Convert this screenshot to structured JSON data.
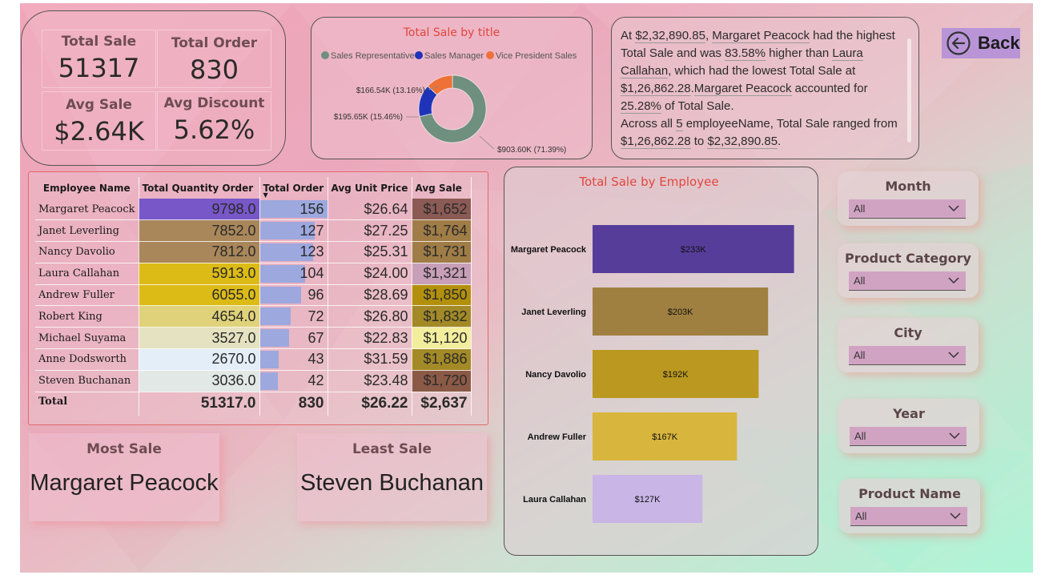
{
  "kpis": {
    "total_sale": {
      "label": "Total Sale",
      "value": "51317"
    },
    "total_order": {
      "label": "Total Order",
      "value": "830"
    },
    "avg_sale": {
      "label": "Avg Sale",
      "value": "$2.64K"
    },
    "avg_discount": {
      "label": "Avg Discount",
      "value": "5.62%"
    }
  },
  "narrative": {
    "p1_a": "At ",
    "p1_amount": "$2,32,890.85",
    "p1_b": ", ",
    "p1_name": "Margaret Peacock",
    "p1_c": " had the highest Total Sale and was ",
    "p1_pct": "83.58%",
    "p1_d": " higher than ",
    "p1_name2": "Laura Callahan",
    "p1_e": ", which had the lowest Total Sale at ",
    "p1_amount2": "$1,26,862.28",
    "p1_f": ".",
    "p1_name3": "Margaret Peacock",
    "p1_g": " accounted for ",
    "p1_pct2": "25.28%",
    "p1_h": " of Total Sale.",
    "p2_a": "Across all ",
    "p2_count": "5",
    "p2_b": " employeeName, Total Sale ranged from ",
    "p2_min": "$1,26,862.28",
    "p2_c": " to ",
    "p2_max": "$2,32,890.85",
    "p2_d": "."
  },
  "back_label": "Back",
  "table": {
    "headers": [
      "Employee Name",
      "Total Quantity Order",
      "Total Order",
      "Avg Unit Price",
      "Avg Sale"
    ],
    "rows": [
      {
        "name": "Margaret Peacock",
        "qty": "9798.0",
        "orders": "156",
        "price": "$26.64",
        "avg": "$1,652"
      },
      {
        "name": "Janet Leverling",
        "qty": "7852.0",
        "orders": "127",
        "price": "$27.25",
        "avg": "$1,764"
      },
      {
        "name": "Nancy Davolio",
        "qty": "7812.0",
        "orders": "123",
        "price": "$25.31",
        "avg": "$1,731"
      },
      {
        "name": "Laura Callahan",
        "qty": "5913.0",
        "orders": "104",
        "price": "$24.00",
        "avg": "$1,321"
      },
      {
        "name": "Andrew Fuller",
        "qty": "6055.0",
        "orders": "96",
        "price": "$28.69",
        "avg": "$1,850"
      },
      {
        "name": "Robert King",
        "qty": "4654.0",
        "orders": "72",
        "price": "$26.80",
        "avg": "$1,832"
      },
      {
        "name": "Michael Suyama",
        "qty": "3527.0",
        "orders": "67",
        "price": "$22.83",
        "avg": "$1,120"
      },
      {
        "name": "Anne Dodsworth",
        "qty": "2670.0",
        "orders": "43",
        "price": "$31.59",
        "avg": "$1,886"
      },
      {
        "name": "Steven Buchanan",
        "qty": "3036.0",
        "orders": "42",
        "price": "$23.48",
        "avg": "$1,720"
      }
    ],
    "order_values": [
      156,
      127,
      123,
      104,
      96,
      72,
      67,
      43,
      42
    ],
    "order_max": 156,
    "qty_colors": [
      "#7857c8",
      "#a9875a",
      "#a9875a",
      "#dcbb16",
      "#dcbb16",
      "#e0d27a",
      "#e4e2c0",
      "#e3eef8",
      "#e1e8e6"
    ],
    "avg_colors": [
      "#8b5a54",
      "#a07c46",
      "#a07c46",
      "#c89fb8",
      "#b3900c",
      "#a38a26",
      "#f3ee9e",
      "#a38a26",
      "#8b5a46"
    ],
    "total": {
      "label": "Total",
      "qty": "51317.0",
      "orders": "830",
      "price": "$26.22",
      "avg": "$2,637"
    }
  },
  "most_sale": {
    "label": "Most Sale",
    "value": "Margaret Peacock"
  },
  "least_sale": {
    "label": "Least Sale",
    "value": "Steven Buchanan"
  },
  "slicers": [
    {
      "label": "Month",
      "value": "All"
    },
    {
      "label": "Product Category",
      "value": "All"
    },
    {
      "label": "City",
      "value": "All"
    },
    {
      "label": "Year",
      "value": "All"
    },
    {
      "label": "Product Name",
      "value": "All"
    }
  ],
  "chart_data": [
    {
      "type": "pie",
      "title": "Total Sale by title",
      "legend_placement": "top",
      "categories": [
        "Sales Representative",
        "Sales Manager",
        "Vice President Sales"
      ],
      "values": [
        903.6,
        195.65,
        166.54
      ],
      "units": "K",
      "data_labels": [
        "$903.60K (71.39%)",
        "$195.65K (15.46%)",
        "$166.54K (13.16%)"
      ],
      "colors": [
        "#6f8f7f",
        "#1f33b8",
        "#ee7138"
      ]
    },
    {
      "type": "bar",
      "orientation": "horizontal",
      "title": "Total Sale by Employee",
      "categories": [
        "Margaret Peacock",
        "Janet Leverling",
        "Nancy Davolio",
        "Andrew Fuller",
        "Laura Callahan"
      ],
      "values": [
        233,
        203,
        192,
        167,
        127
      ],
      "units": "K",
      "data_labels": [
        "$233K",
        "$203K",
        "$192K",
        "$167K",
        "$127K"
      ],
      "colors": [
        "#573d9a",
        "#a08040",
        "#bb981f",
        "#d8b53c",
        "#c9b5e6"
      ],
      "xlim": [
        0,
        250
      ]
    }
  ]
}
